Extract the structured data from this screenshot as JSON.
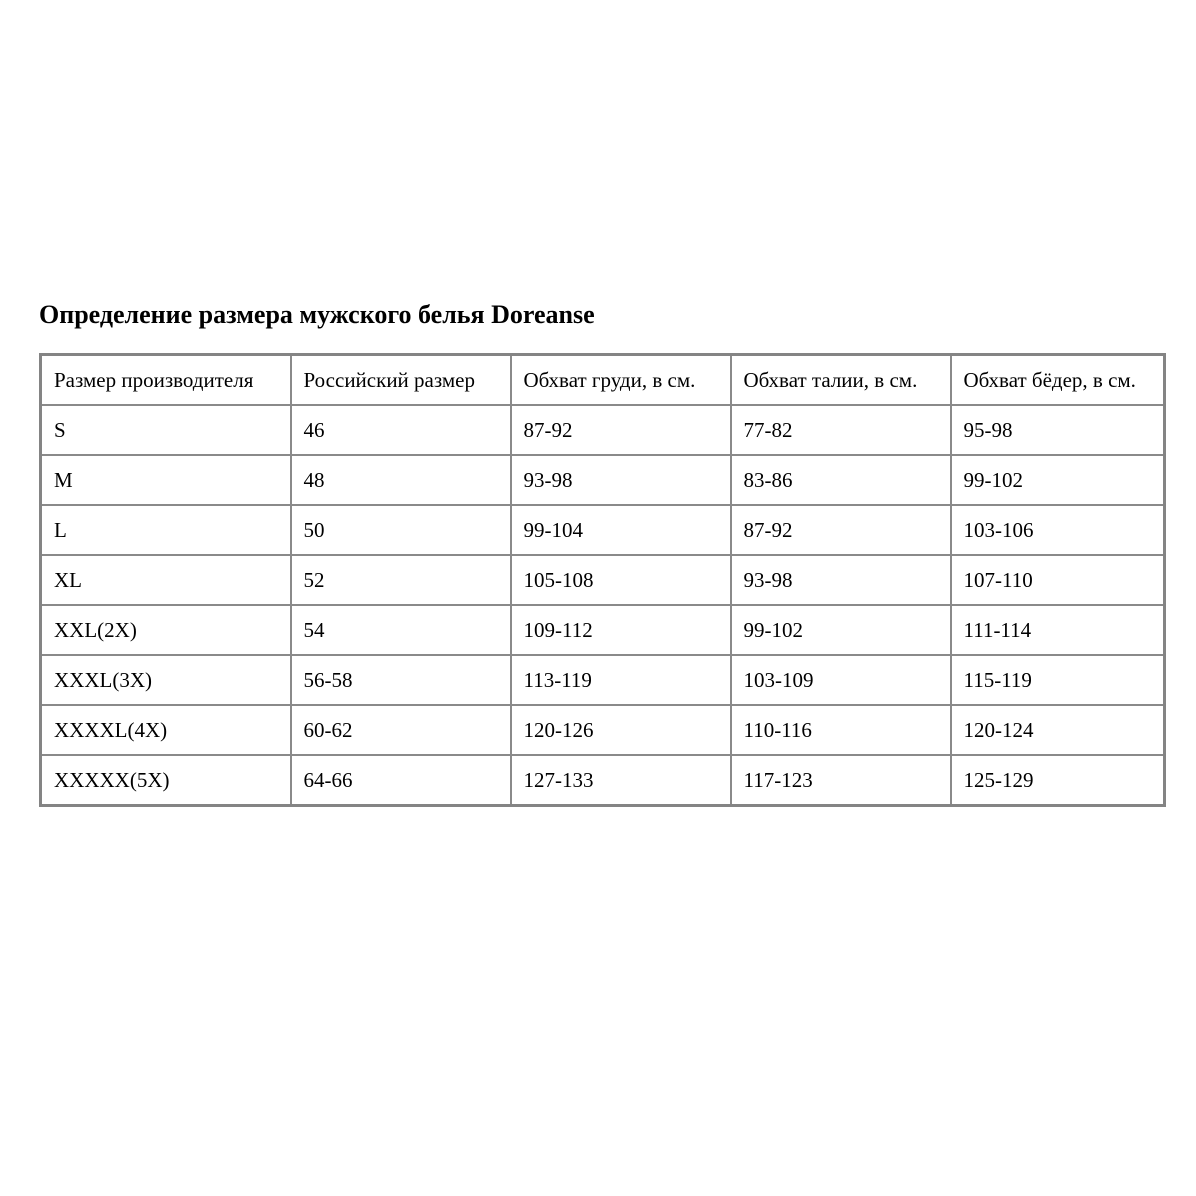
{
  "page": {
    "title": "Определение размера мужского белья Doreanse"
  },
  "colors": {
    "background": "#ffffff",
    "text": "#000000",
    "table_border": "#8a8a8a"
  },
  "table": {
    "columns": [
      "Размер производителя",
      "Российский размер",
      "Обхват груди, в см.",
      "Обхват талии, в см.",
      "Обхват бёдер, в см."
    ],
    "rows": [
      [
        "S",
        "46",
        "87-92",
        "77-82",
        "95-98"
      ],
      [
        "M",
        "48",
        "93-98",
        "83-86",
        "99-102"
      ],
      [
        "L",
        "50",
        "99-104",
        "87-92",
        "103-106"
      ],
      [
        "XL",
        "52",
        "105-108",
        "93-98",
        "107-110"
      ],
      [
        "XXL(2X)",
        "54",
        "109-112",
        "99-102",
        "111-114"
      ],
      [
        "XXXL(3X)",
        "56-58",
        "113-119",
        "103-109",
        "115-119"
      ],
      [
        "XXXXL(4X)",
        "60-62",
        "120-126",
        "110-116",
        "120-124"
      ],
      [
        "XXXXX(5X)",
        "64-66",
        "127-133",
        "117-123",
        "125-129"
      ]
    ]
  }
}
